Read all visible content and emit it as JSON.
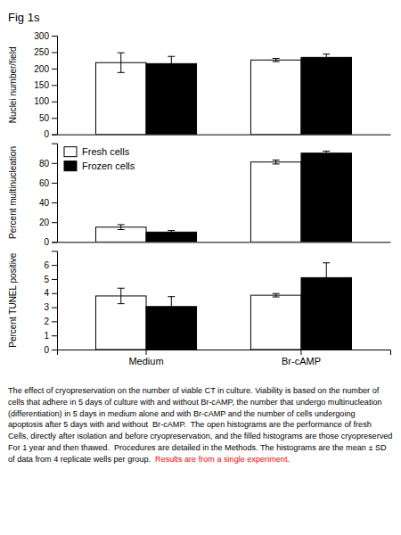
{
  "chart_data": [
    {
      "type": "bar",
      "title": "Fig 1s",
      "ylabel": "Nuclei number/field",
      "categories": [
        "Medium",
        "Br-cAMP"
      ],
      "series": [
        {
          "color": "#ffffff",
          "values": [
            218,
            226
          ],
          "errors": [
            30,
            5
          ]
        },
        {
          "color": "#000000",
          "values": [
            215,
            234
          ],
          "errors": [
            22,
            10
          ]
        }
      ],
      "ylim": [
        0,
        300
      ],
      "yticks": [
        0,
        50,
        100,
        150,
        200,
        250,
        300
      ],
      "tick_labels": "y"
    },
    {
      "type": "bar",
      "ylabel": "Percent multinucleation",
      "categories": [
        "Medium",
        "Br-cAMP"
      ],
      "series": [
        {
          "name": "Fresh cells",
          "color": "#ffffff",
          "values": [
            15,
            81
          ],
          "errors": [
            2.5,
            2
          ]
        },
        {
          "name": "Frozen cells",
          "color": "#000000",
          "values": [
            10,
            90
          ],
          "errors": [
            1.5,
            2
          ]
        }
      ],
      "ylim": [
        0,
        100
      ],
      "yticks": [
        0,
        20,
        40,
        60,
        80
      ],
      "tick_labels": "y",
      "legend": "upper left"
    },
    {
      "type": "bar",
      "ylabel": "Percent TUNEL positive",
      "categories": [
        "Medium",
        "Br-cAMP"
      ],
      "series": [
        {
          "color": "#ffffff",
          "values": [
            3.8,
            3.85
          ],
          "errors": [
            0.55,
            0.12
          ]
        },
        {
          "color": "#000000",
          "values": [
            3.05,
            5.1
          ],
          "errors": [
            0.7,
            1.05
          ]
        }
      ],
      "ylim": [
        0,
        7
      ],
      "yticks": [
        0,
        1,
        2,
        3,
        4,
        5,
        6
      ],
      "annotations": [
        [
          {
            "text": "The effect of cryopreservation on the number of viable CT in culture. Viability is based on the number of",
            "color": "black"
          }
        ],
        [
          {
            "text": "cells that adhere in 5 days of culture with and without Br-cAMP, the number that undergo multinucleation",
            "color": "black"
          }
        ],
        [
          {
            "text": "(differentiation) in 5 days in medium alone and with Br-cAMP and the number of cells undergoing",
            "color": "black"
          }
        ],
        [
          {
            "text": "apoptosis after 5 days with and without  Br-cAMP.  The open histograms are the performance of fresh",
            "color": "black"
          }
        ],
        [
          {
            "text": "Cells, directly after isolation and before cryopreservation, and the filled histograms are those cryopreserved",
            "color": "black"
          }
        ],
        [
          {
            "text": "For 1 year and then thawed.  Procedures are detailed in the Methods. The histograms are the mean ± SD",
            "color": "black"
          }
        ],
        [
          {
            "text": "of data from 4 replicate wells per group.  ",
            "color": "black"
          },
          {
            "text": "Results are from a single experiment.",
            "color": "red"
          }
        ]
      ]
    }
  ]
}
